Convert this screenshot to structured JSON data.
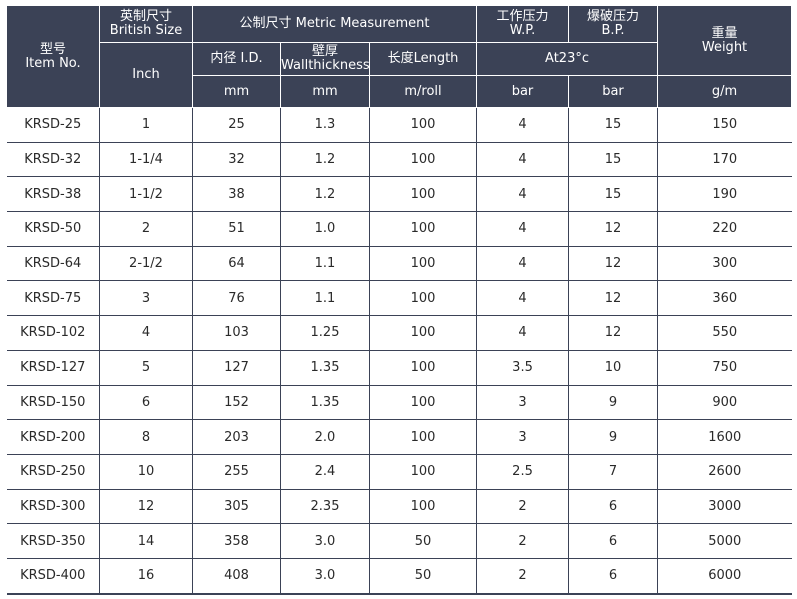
{
  "header": {
    "item_no_cn": "型号",
    "item_no_en": "Item No.",
    "british_cn": "英制尺寸",
    "british_en": "British Size",
    "metric_group": "公制尺寸 Metric Measurement",
    "wp_cn": "工作压力",
    "wp_en": "W.P.",
    "bp_cn": "爆破压力",
    "bp_en": "B.P.",
    "weight_cn": "重量",
    "weight_en": "Weight",
    "inch": "Inch",
    "id": "内径 I.D.",
    "wall_cn": "壁厚",
    "wall_en": "Wallthickness",
    "length": "长度Length",
    "at_temp": "At23°c",
    "unit_id": "mm",
    "unit_wall": "mm",
    "unit_length": "m/roll",
    "unit_wp": "bar",
    "unit_bp": "bar",
    "unit_weight": "g/m"
  },
  "rows": [
    [
      "KRSD-25",
      "1",
      "25",
      "1.3",
      "100",
      "4",
      "15",
      "150"
    ],
    [
      "KRSD-32",
      "1-1/4",
      "32",
      "1.2",
      "100",
      "4",
      "15",
      "170"
    ],
    [
      "KRSD-38",
      "1-1/2",
      "38",
      "1.2",
      "100",
      "4",
      "15",
      "190"
    ],
    [
      "KRSD-50",
      "2",
      "51",
      "1.0",
      "100",
      "4",
      "12",
      "220"
    ],
    [
      "KRSD-64",
      "2-1/2",
      "64",
      "1.1",
      "100",
      "4",
      "12",
      "300"
    ],
    [
      "KRSD-75",
      "3",
      "76",
      "1.1",
      "100",
      "4",
      "12",
      "360"
    ],
    [
      "KRSD-102",
      "4",
      "103",
      "1.25",
      "100",
      "4",
      "12",
      "550"
    ],
    [
      "KRSD-127",
      "5",
      "127",
      "1.35",
      "100",
      "3.5",
      "10",
      "750"
    ],
    [
      "KRSD-150",
      "6",
      "152",
      "1.35",
      "100",
      "3",
      "9",
      "900"
    ],
    [
      "KRSD-200",
      "8",
      "203",
      "2.0",
      "100",
      "3",
      "9",
      "1600"
    ],
    [
      "KRSD-250",
      "10",
      "255",
      "2.4",
      "100",
      "2.5",
      "7",
      "2600"
    ],
    [
      "KRSD-300",
      "12",
      "305",
      "2.35",
      "100",
      "2",
      "6",
      "3000"
    ],
    [
      "KRSD-350",
      "14",
      "358",
      "3.0",
      "50",
      "2",
      "6",
      "5000"
    ],
    [
      "KRSD-400",
      "16",
      "408",
      "3.0",
      "50",
      "2",
      "6",
      "6000"
    ]
  ]
}
